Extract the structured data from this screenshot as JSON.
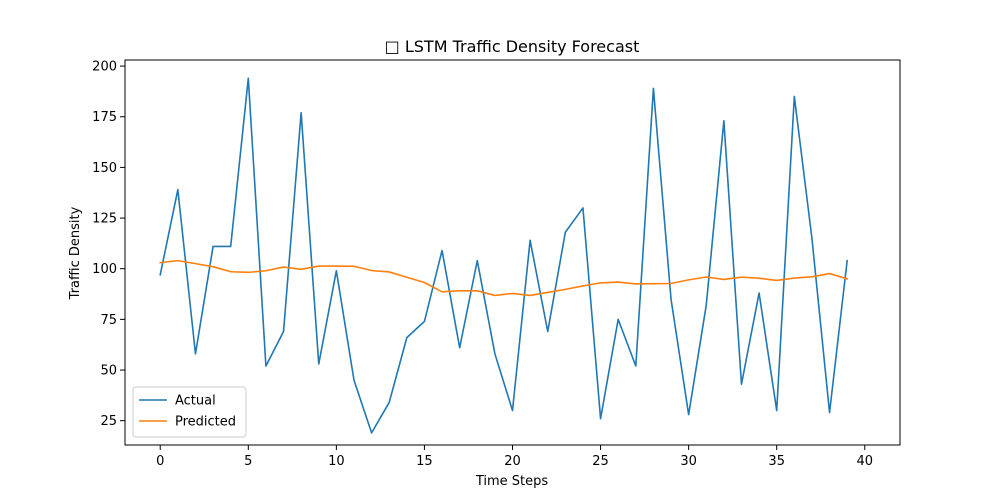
{
  "chart_data": {
    "type": "line",
    "title": "□ LSTM Traffic Density Forecast",
    "xlabel": "Time Steps",
    "ylabel": "Traffic Density",
    "xlim": [
      -2,
      42
    ],
    "ylim": [
      13,
      203
    ],
    "xticks": [
      0,
      5,
      10,
      15,
      20,
      25,
      30,
      35,
      40
    ],
    "yticks": [
      25,
      50,
      75,
      100,
      125,
      150,
      175,
      200
    ],
    "grid": false,
    "legend_position": "lower-left",
    "x": [
      0,
      1,
      2,
      3,
      4,
      5,
      6,
      7,
      8,
      9,
      10,
      11,
      12,
      13,
      14,
      15,
      16,
      17,
      18,
      19,
      20,
      21,
      22,
      23,
      24,
      25,
      26,
      27,
      28,
      29,
      30,
      31,
      32,
      33,
      34,
      35,
      36,
      37,
      38,
      39
    ],
    "series": [
      {
        "name": "Actual",
        "color": "#1f77b4",
        "values": [
          97,
          139,
          58,
          111,
          111,
          194,
          52,
          69,
          177,
          53,
          99,
          45,
          19,
          34,
          66,
          74,
          109,
          61,
          104,
          58,
          30,
          114,
          69,
          118,
          130,
          26,
          75,
          52,
          189,
          85,
          28,
          82,
          173,
          43,
          88,
          30,
          185,
          115,
          29,
          104
        ]
      },
      {
        "name": "Predicted",
        "color": "#ff7f0e",
        "values": [
          103,
          104,
          102.5,
          101,
          98.5,
          98.2,
          99,
          100.8,
          99.7,
          101.3,
          101.3,
          101.2,
          99.1,
          98.4,
          95.8,
          93.2,
          88.6,
          89.1,
          89.1,
          86.8,
          87.8,
          86.8,
          88.3,
          89.8,
          91.5,
          93,
          93.4,
          92.5,
          92.6,
          92.7,
          94.5,
          95.9,
          94.7,
          95.8,
          95.3,
          94.2,
          95.4,
          96,
          97.6,
          95
        ]
      }
    ]
  }
}
